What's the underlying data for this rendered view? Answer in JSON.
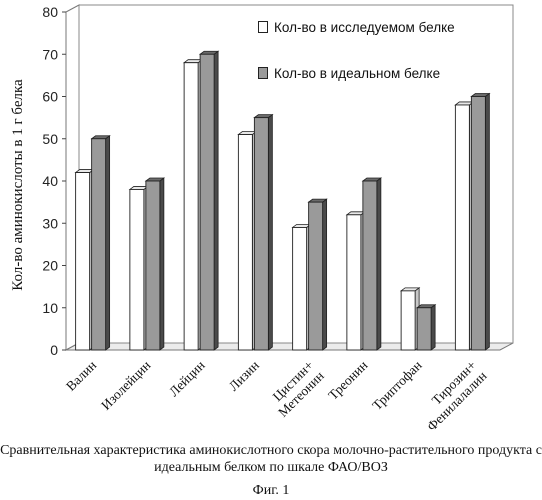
{
  "chart_data": {
    "type": "bar",
    "categories": [
      "Валин",
      "Изолейцин",
      "Лейцин",
      "Лизин",
      "Цистин+ Метеонин",
      "Треонин",
      "Триптофан",
      "Тирозин+ Фенилалалин"
    ],
    "series": [
      {
        "name": "Кол-во в исследуемом белке",
        "values": [
          42,
          38,
          68,
          51,
          29,
          32,
          14,
          58
        ],
        "color": "#ffffff"
      },
      {
        "name": "Кол-во в идеальном белке",
        "values": [
          50,
          40,
          70,
          55,
          35,
          40,
          10,
          60
        ],
        "color": "#9a9a9a"
      }
    ],
    "ylabel": "Кол-во аминокислоты в 1 г белка",
    "xlabel": "",
    "ylim": [
      0,
      80
    ],
    "yticks": [
      0,
      10,
      20,
      30,
      40,
      50,
      60,
      70,
      80
    ],
    "legend_position": "top-right",
    "style": "3d-bars"
  },
  "caption": {
    "text": "Сравнительная характеристика аминокислотного скора молочно-растительного продукта с идеальным белком по шкале ФАО/ВОЗ",
    "figure_label": "Фиг. 1"
  }
}
